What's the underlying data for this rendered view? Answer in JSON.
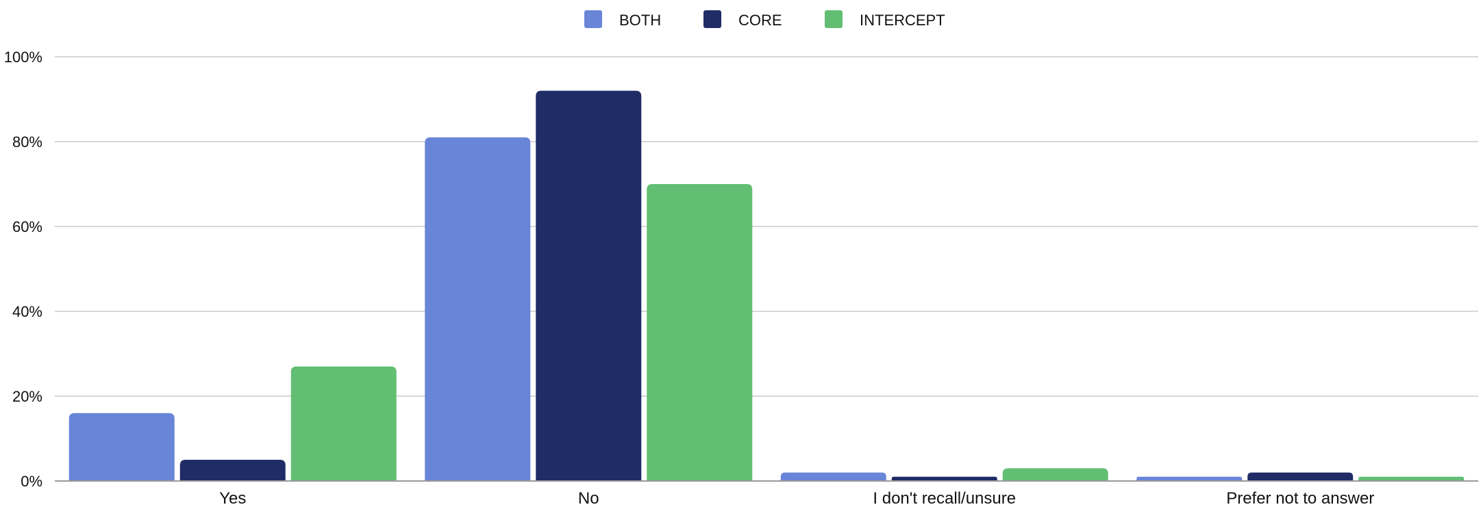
{
  "chart_data": {
    "type": "bar",
    "title": "",
    "xlabel": "",
    "ylabel": "",
    "ylim": [
      0,
      100
    ],
    "y_ticks": [
      {
        "value": 0,
        "label": "0%"
      },
      {
        "value": 20,
        "label": "20%"
      },
      {
        "value": 40,
        "label": "40%"
      },
      {
        "value": 60,
        "label": "60%"
      },
      {
        "value": 80,
        "label": "80%"
      },
      {
        "value": 100,
        "label": "100%"
      }
    ],
    "grid": true,
    "legend_position": "top-center",
    "categories": [
      "Yes",
      "No",
      "I don't recall/unsure",
      "Prefer not to answer"
    ],
    "series": [
      {
        "name": "BOTH",
        "color": "#6985d8",
        "values": [
          16,
          81,
          2,
          1
        ]
      },
      {
        "name": "CORE",
        "color": "#1f2c66",
        "values": [
          5,
          92,
          1,
          2
        ]
      },
      {
        "name": "INTERCEPT",
        "color": "#62be73",
        "values": [
          27,
          70,
          3,
          1
        ]
      }
    ]
  }
}
